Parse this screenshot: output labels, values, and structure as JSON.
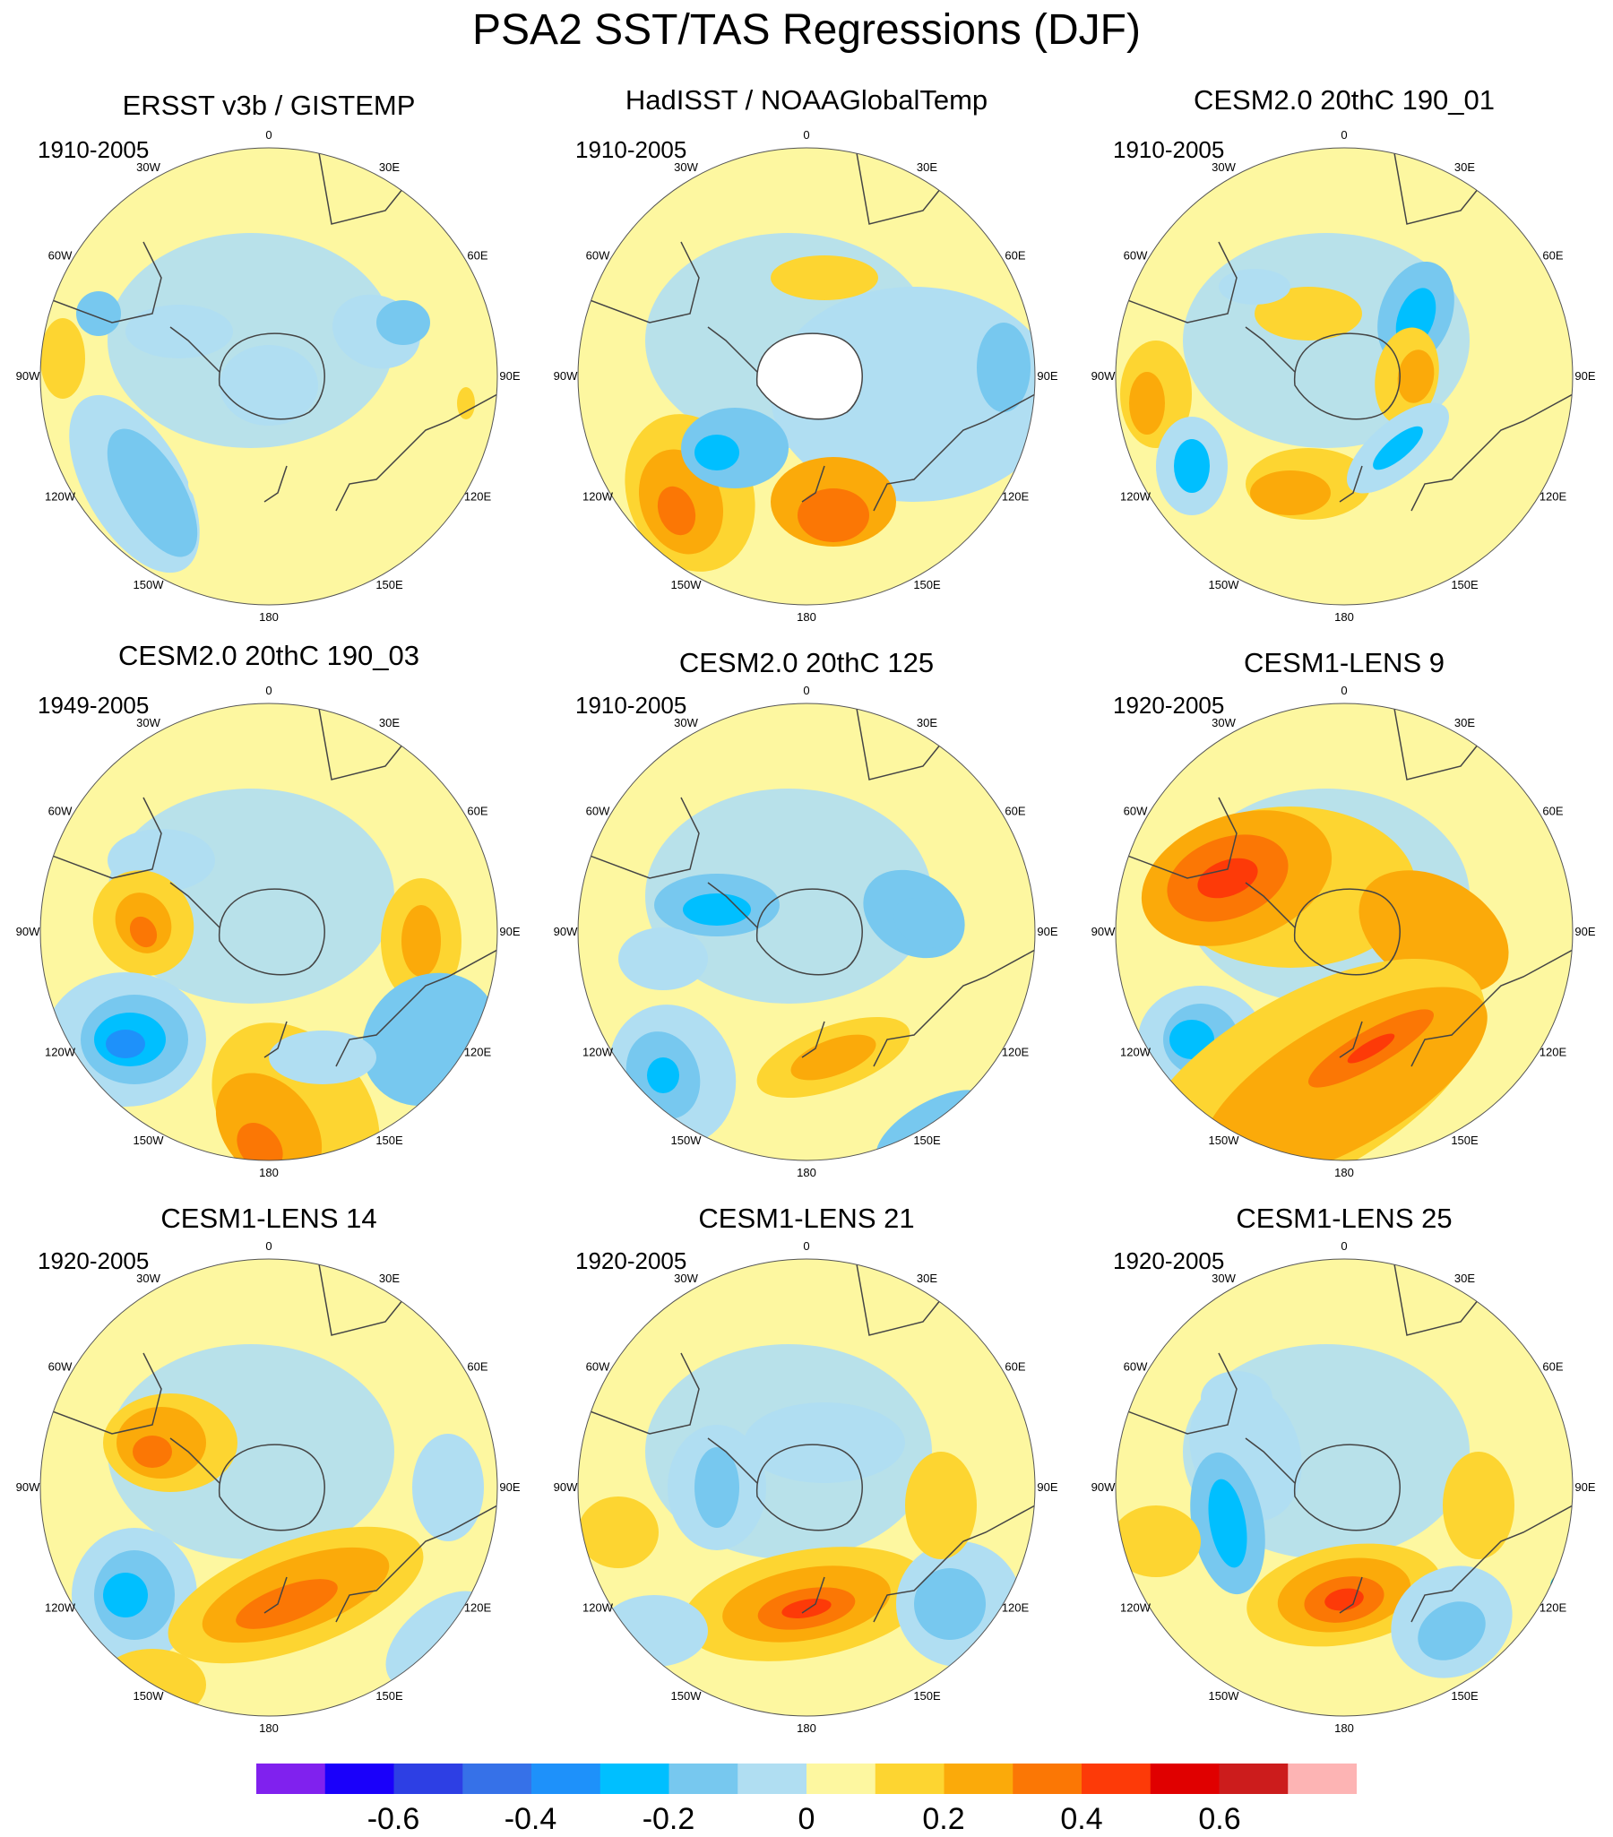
{
  "title": "PSA2 SST/TAS Regressions (DJF)",
  "colors": {
    "land_outline": "#333333",
    "missing": "#ffffff",
    "levels": [
      "#8021ee",
      "#1a00fa",
      "#2d3fe4",
      "#3671e8",
      "#1e91fa",
      "#00bfff",
      "#77c8ef",
      "#b0def2",
      "#fdf7a0",
      "#fdd531",
      "#fbaa0a",
      "#fb7705",
      "#fd3a08",
      "#e00000",
      "#cc1c1c",
      "#fdb4b4"
    ]
  },
  "longitude_labels": [
    "0",
    "30E",
    "60E",
    "90E",
    "120E",
    "150E",
    "180",
    "150W",
    "120W",
    "90W",
    "60W",
    "30W"
  ],
  "colorbar": {
    "tick_labels": [
      "-0.6",
      "-0.4",
      "-0.2",
      "0",
      "0.2",
      "0.4",
      "0.6"
    ]
  },
  "panels": [
    {
      "title": "ERSST v3b / GISTEMP",
      "period": "1910-2005"
    },
    {
      "title": "HadISST / NOAAGlobalTemp",
      "period": "1910-2005"
    },
    {
      "title": "CESM2.0 20thC 190_01",
      "period": "1910-2005"
    },
    {
      "title": "CESM2.0 20thC 190_03",
      "period": "1949-2005"
    },
    {
      "title": "CESM2.0 20thC 125",
      "period": "1910-2005"
    },
    {
      "title": "CESM1-LENS 9",
      "period": "1920-2005"
    },
    {
      "title": "CESM1-LENS 14",
      "period": "1920-2005"
    },
    {
      "title": "CESM1-LENS 21",
      "period": "1920-2005"
    },
    {
      "title": "CESM1-LENS 25",
      "period": "1920-2005"
    }
  ]
}
